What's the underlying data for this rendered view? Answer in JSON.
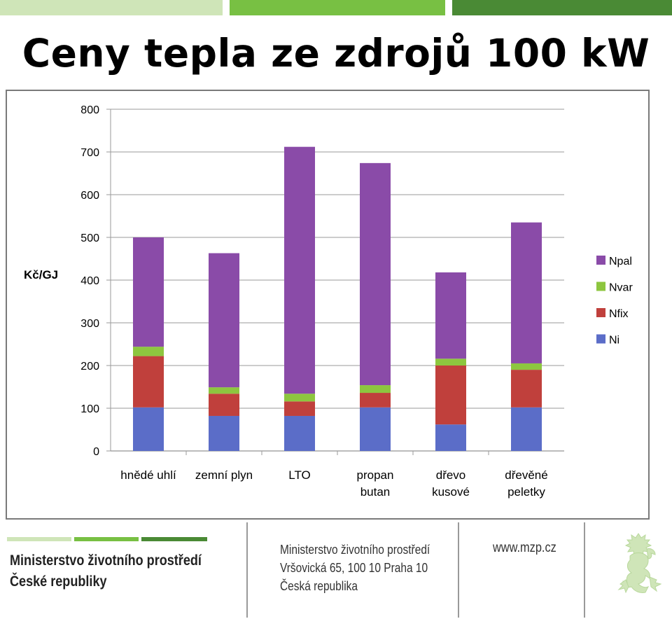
{
  "header": {
    "bar_colors": [
      "#cfe5b8",
      "#78c043",
      "#4a8a35"
    ]
  },
  "title": "Ceny tepla ze zdrojů 100 kW",
  "chart_data": {
    "type": "bar",
    "stacked": true,
    "ylabel": "Kč/GJ",
    "ylim": [
      0,
      800
    ],
    "yticks": [
      0,
      100,
      200,
      300,
      400,
      500,
      600,
      700,
      800
    ],
    "grid": true,
    "legend_position": "right",
    "categories": [
      [
        "hnědé uhlí"
      ],
      [
        "zemní plyn"
      ],
      [
        "LTO"
      ],
      [
        "propan",
        "butan"
      ],
      [
        "dřevo",
        "kusové"
      ],
      [
        "dřevěné",
        "peletky"
      ]
    ],
    "series": [
      {
        "name": "Ni",
        "color": "#5b6dc8",
        "values": [
          102,
          82,
          82,
          102,
          62,
          102
        ]
      },
      {
        "name": "Nfix",
        "color": "#c0403c",
        "values": [
          120,
          52,
          34,
          34,
          138,
          88
        ]
      },
      {
        "name": "Nvar",
        "color": "#8dc63f",
        "values": [
          22,
          15,
          18,
          18,
          16,
          15
        ]
      },
      {
        "name": "Npal",
        "color": "#8a4ba8",
        "values": [
          256,
          314,
          578,
          520,
          202,
          330
        ]
      }
    ]
  },
  "footer": {
    "bar_colors": [
      "#cfe5b8",
      "#78c043",
      "#4a8a35"
    ],
    "org_line1": "Ministerstvo životního prostředí",
    "org_line2": "České republiky",
    "addr_line1": "Ministerstvo životního prostředí",
    "addr_line2": "Vršovická 65, 100 10  Praha 10",
    "addr_line3": "Česká republika",
    "website": "www.mzp.cz",
    "emblem": "lion-emblem"
  }
}
